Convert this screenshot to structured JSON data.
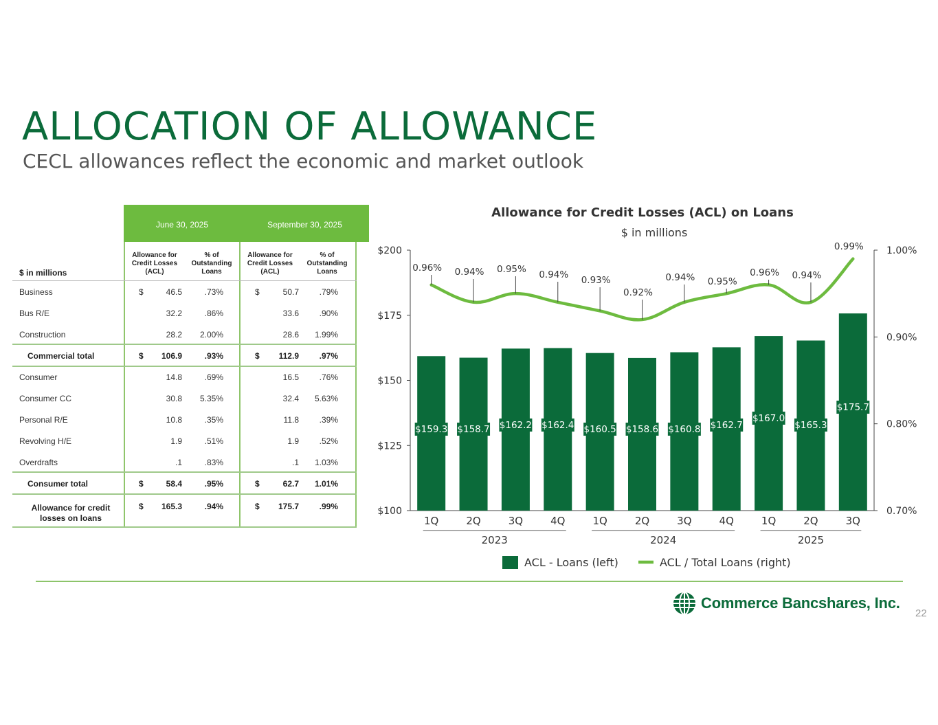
{
  "header": {
    "title": "ALLOCATION OF ALLOWANCE",
    "subtitle": "CECL allowances reflect the economic and market outlook"
  },
  "table": {
    "periods": [
      "June 30, 2025",
      "September 30, 2025"
    ],
    "unit_label": "$ in millions",
    "col_acl": "Allowance for Credit Losses (ACL)",
    "col_pct": "% of Outstanding Loans",
    "rows": [
      {
        "label": "Business",
        "june_acl": "46.5",
        "june_pct": ".73%",
        "sep_acl": "50.7",
        "sep_pct": ".79%"
      },
      {
        "label": "Bus R/E",
        "june_acl": "32.2",
        "june_pct": ".86%",
        "sep_acl": "33.6",
        "sep_pct": ".90%"
      },
      {
        "label": "Construction",
        "june_acl": "28.2",
        "june_pct": "2.00%",
        "sep_acl": "28.6",
        "sep_pct": "1.99%"
      },
      {
        "label": "Commercial total",
        "june_acl": "106.9",
        "june_pct": ".93%",
        "sep_acl": "112.9",
        "sep_pct": ".97%"
      },
      {
        "label": "Consumer",
        "june_acl": "14.8",
        "june_pct": ".69%",
        "sep_acl": "16.5",
        "sep_pct": ".76%"
      },
      {
        "label": "Consumer CC",
        "june_acl": "30.8",
        "june_pct": "5.35%",
        "sep_acl": "32.4",
        "sep_pct": "5.63%"
      },
      {
        "label": "Personal R/E",
        "june_acl": "10.8",
        "june_pct": ".35%",
        "sep_acl": "11.8",
        "sep_pct": ".39%"
      },
      {
        "label": "Revolving H/E",
        "june_acl": "1.9",
        "june_pct": ".51%",
        "sep_acl": "1.9",
        "sep_pct": ".52%"
      },
      {
        "label": "Overdrafts",
        "june_acl": ".1",
        "june_pct": ".83%",
        "sep_acl": ".1",
        "sep_pct": "1.03%"
      },
      {
        "label": "Consumer total",
        "june_acl": "58.4",
        "june_pct": ".95%",
        "sep_acl": "62.7",
        "sep_pct": "1.01%"
      },
      {
        "label": "Allowance for credit losses on loans",
        "june_acl": "165.3",
        "june_pct": ".94%",
        "sep_acl": "175.7",
        "sep_pct": ".99%"
      }
    ]
  },
  "chart_data": {
    "type": "bar",
    "title": "Allowance for Credit Losses (ACL) on Loans",
    "subtitle": "$ in millions",
    "categories": [
      "1Q",
      "2Q",
      "3Q",
      "4Q",
      "1Q",
      "2Q",
      "3Q",
      "4Q",
      "1Q",
      "2Q",
      "3Q"
    ],
    "year_groups": [
      {
        "label": "2023",
        "count": 4
      },
      {
        "label": "2024",
        "count": 4
      },
      {
        "label": "2025",
        "count": 3
      }
    ],
    "series": [
      {
        "name": "ACL - Loans (left)",
        "type": "bar",
        "axis": "left",
        "values": [
          159.3,
          158.7,
          162.2,
          162.4,
          160.5,
          158.6,
          160.8,
          162.7,
          167.0,
          165.3,
          175.7
        ],
        "labels": [
          "$159.3",
          "$158.7",
          "$162.2",
          "$162.4",
          "$160.5",
          "$158.6",
          "$160.8",
          "$162.7",
          "$167.0",
          "$165.3",
          "$175.7"
        ],
        "color": "#0b6b3a"
      },
      {
        "name": "ACL / Total Loans (right)",
        "type": "line",
        "axis": "right",
        "values": [
          0.96,
          0.94,
          0.95,
          0.94,
          0.93,
          0.92,
          0.94,
          0.95,
          0.96,
          0.94,
          0.99
        ],
        "labels": [
          "0.96%",
          "0.94%",
          "0.95%",
          "0.94%",
          "0.93%",
          "0.92%",
          "0.94%",
          "0.95%",
          "0.96%",
          "0.94%",
          "0.99%"
        ],
        "color": "#6dbb3f"
      }
    ],
    "y_left": {
      "min": 100,
      "max": 200,
      "ticks": [
        "$100",
        "$125",
        "$150",
        "$175",
        "$200"
      ]
    },
    "y_right": {
      "min": 0.7,
      "max": 1.0,
      "ticks": [
        "0.70%",
        "0.80%",
        "0.90%",
        "1.00%"
      ]
    },
    "legend_position": "bottom",
    "grid": false
  },
  "footer": {
    "company": "Commerce Bancshares, Inc.",
    "page_number": "22"
  }
}
